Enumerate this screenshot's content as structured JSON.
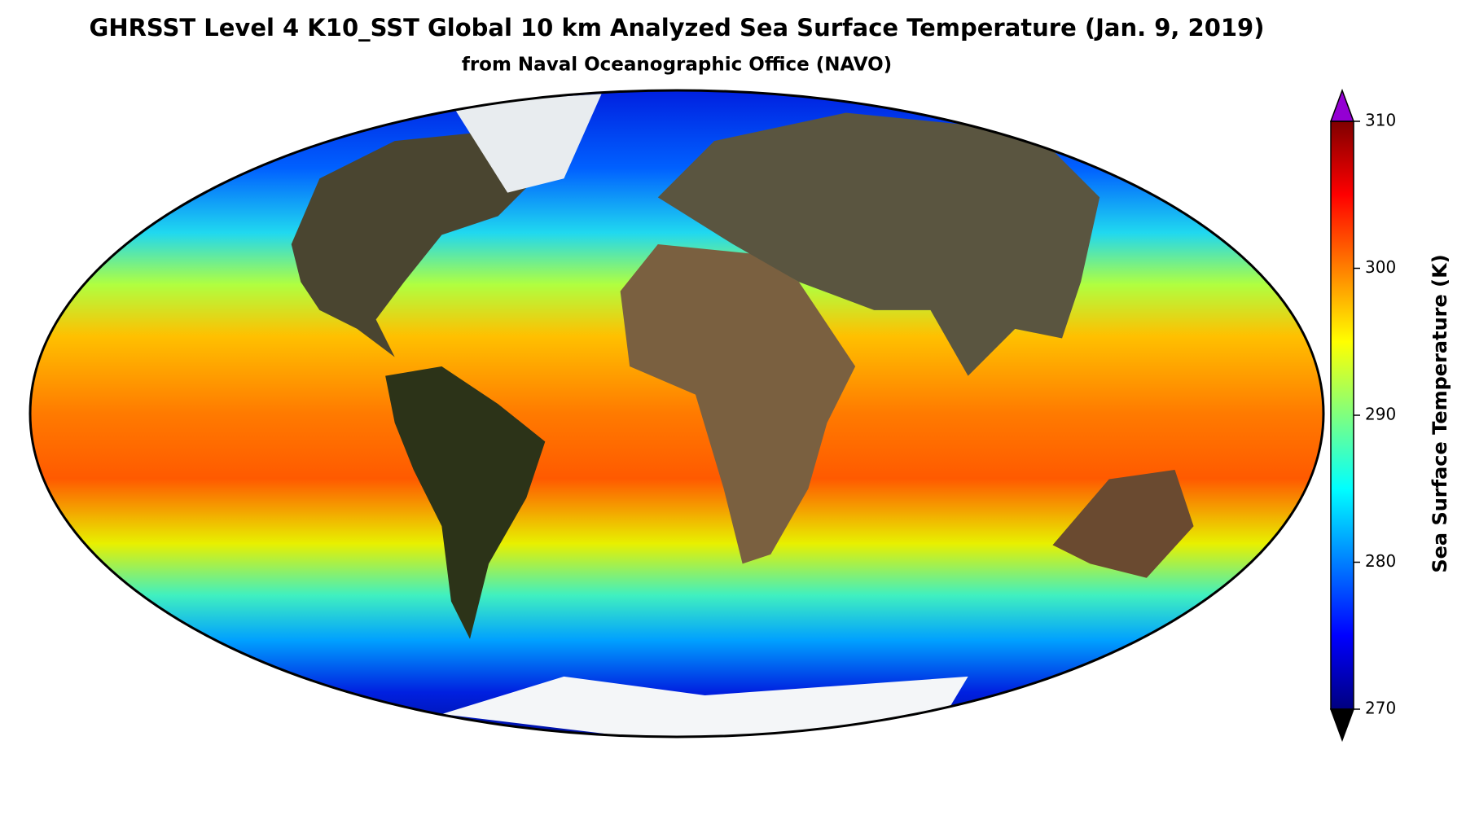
{
  "title": "GHRSST Level 4 K10_SST Global 10 km Analyzed Sea Surface Temperature (Jan. 9, 2019)",
  "subtitle": "from Naval Oceanographic Office (NAVO)",
  "colorbar": {
    "label": "Sea Surface Temperature (K)",
    "lim": [
      270,
      310
    ],
    "ticks": [
      270,
      280,
      290,
      300,
      310
    ],
    "extend": "both",
    "under_color": "#000000",
    "over_color": "#9400d3",
    "colors": [
      "#00007f",
      "#0000ff",
      "#007fff",
      "#00ffff",
      "#7fff7f",
      "#ffff00",
      "#ff7f00",
      "#ff0000",
      "#7f0000"
    ]
  }
}
